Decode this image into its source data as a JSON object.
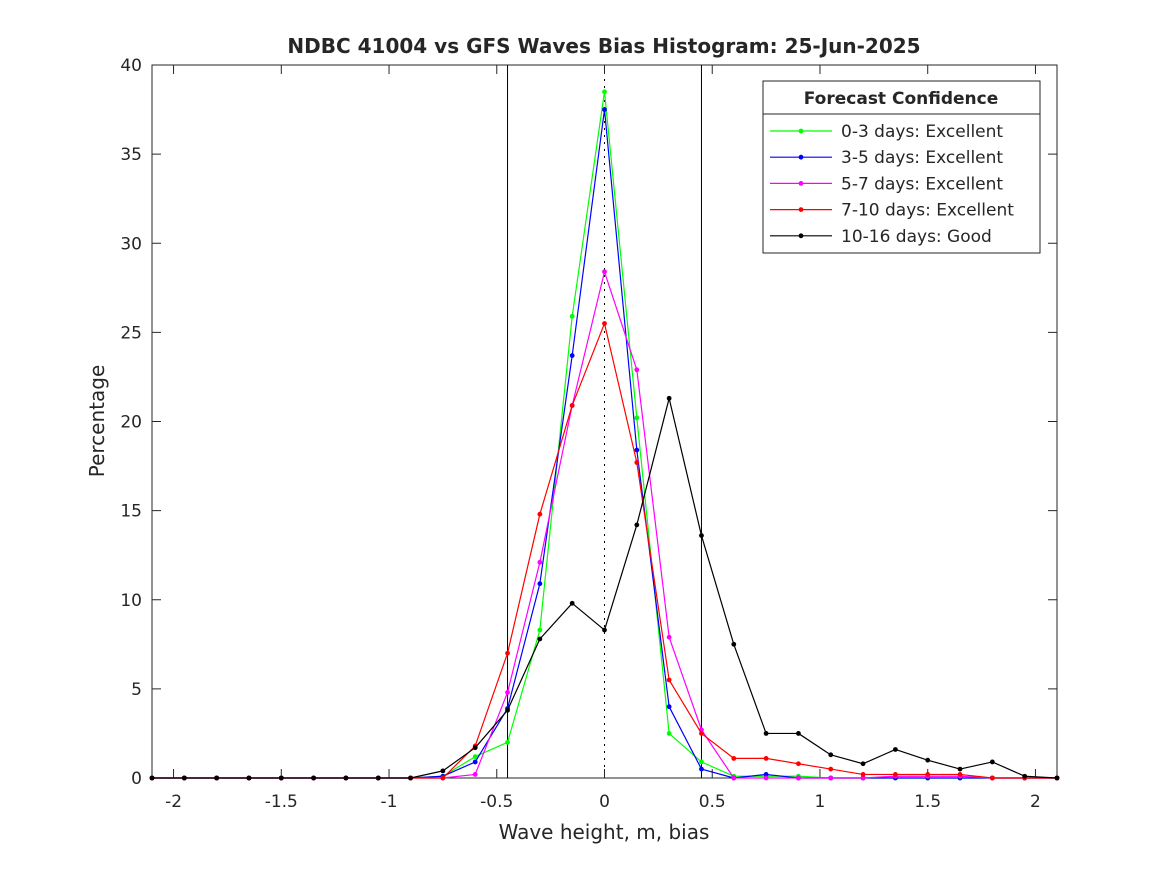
{
  "chart_data": {
    "type": "line",
    "title": "NDBC 41004 vs GFS Waves Bias Histogram: 25-Jun-2025",
    "xlabel": "Wave height, m, bias",
    "ylabel": "Percentage",
    "xlim": [
      -2.1,
      2.1
    ],
    "ylim": [
      0,
      40
    ],
    "xticks": [
      -2,
      -1.5,
      -1,
      -0.5,
      0,
      0.5,
      1,
      1.5,
      2
    ],
    "xtick_labels": [
      "-2",
      "-1.5",
      "-1",
      "-0.5",
      "0",
      "0.5",
      "1",
      "1.5",
      "2"
    ],
    "yticks": [
      0,
      5,
      10,
      15,
      20,
      25,
      30,
      35,
      40
    ],
    "ytick_labels": [
      "0",
      "5",
      "10",
      "15",
      "20",
      "25",
      "30",
      "35",
      "40"
    ],
    "grid": false,
    "legend": {
      "title": "Forecast Confidence",
      "position": "top-right"
    },
    "reference_lines": [
      {
        "x": -0.45,
        "style": "solid",
        "color": "#000000"
      },
      {
        "x": 0,
        "style": "dotted",
        "color": "#000000"
      },
      {
        "x": 0.45,
        "style": "solid",
        "color": "#000000"
      }
    ],
    "x": [
      -2.1,
      -1.95,
      -1.8,
      -1.65,
      -1.5,
      -1.35,
      -1.2,
      -1.05,
      -0.9,
      -0.75,
      -0.6,
      -0.45,
      -0.3,
      -0.15,
      0,
      0.15,
      0.3,
      0.45,
      0.6,
      0.75,
      0.9,
      1.05,
      1.2,
      1.35,
      1.5,
      1.65,
      1.8,
      1.95,
      2.1
    ],
    "series": [
      {
        "name": "0-3 days: Excellent",
        "color": "#00ff00",
        "values": [
          0,
          0,
          0,
          0,
          0,
          0,
          0,
          0,
          0,
          0.1,
          1.2,
          2.0,
          8.3,
          25.9,
          38.5,
          20.2,
          2.5,
          0.9,
          0.1,
          0.1,
          0.1,
          0,
          0,
          0,
          0,
          0,
          0,
          0,
          0
        ]
      },
      {
        "name": "3-5 days: Excellent",
        "color": "#0000ff",
        "values": [
          0,
          0,
          0,
          0,
          0,
          0,
          0,
          0,
          0,
          0.1,
          0.9,
          3.9,
          10.9,
          23.7,
          37.5,
          18.4,
          4.0,
          0.5,
          0,
          0.2,
          0,
          0,
          0,
          0,
          0,
          0,
          0,
          0,
          0
        ]
      },
      {
        "name": "5-7 days: Excellent",
        "color": "#ff00ff",
        "values": [
          0,
          0,
          0,
          0,
          0,
          0,
          0,
          0,
          0,
          0,
          0.2,
          4.8,
          12.1,
          20.9,
          28.4,
          22.9,
          7.9,
          2.7,
          0,
          0,
          0,
          0,
          0,
          0.1,
          0.1,
          0.1,
          0,
          0,
          0
        ]
      },
      {
        "name": "7-10 days: Excellent",
        "color": "#ff0000",
        "values": [
          0,
          0,
          0,
          0,
          0,
          0,
          0,
          0,
          0,
          0,
          1.8,
          7.0,
          14.8,
          20.9,
          25.5,
          17.7,
          5.5,
          2.5,
          1.1,
          1.1,
          0.8,
          0.5,
          0.2,
          0.2,
          0.2,
          0.2,
          0,
          0,
          0
        ]
      },
      {
        "name": "10-16 days: Good",
        "color": "#000000",
        "values": [
          0,
          0,
          0,
          0,
          0,
          0,
          0,
          0,
          0,
          0.4,
          1.7,
          3.8,
          7.8,
          9.8,
          8.3,
          14.2,
          21.3,
          13.6,
          7.5,
          2.5,
          2.5,
          1.3,
          0.8,
          1.6,
          1.0,
          0.5,
          0.9,
          0.1,
          0
        ]
      }
    ]
  }
}
